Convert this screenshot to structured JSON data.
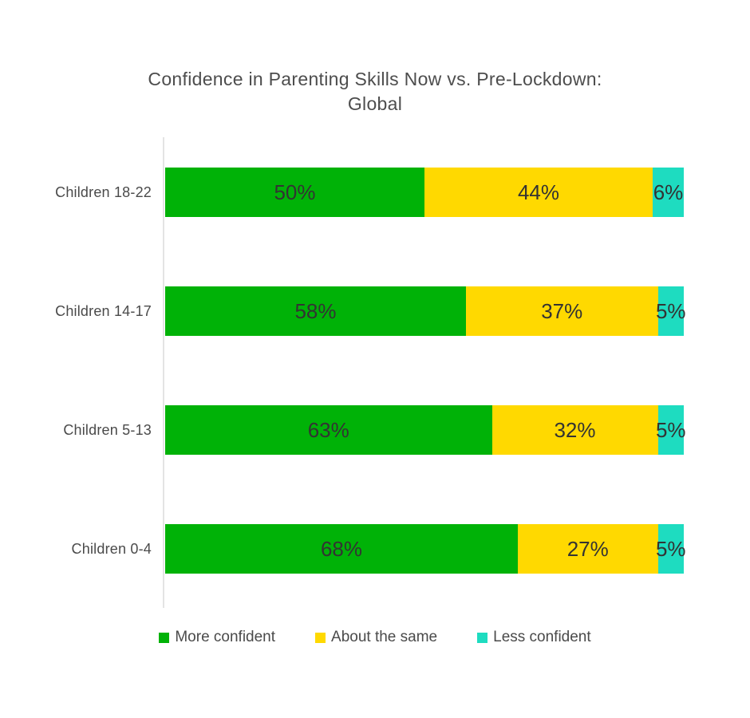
{
  "title": {
    "line1": "Confidence in Parenting Skills Now vs. Pre-Lockdown:",
    "line2": "Global"
  },
  "chart_data": {
    "type": "bar",
    "orientation": "horizontal",
    "stacked": true,
    "title": "Confidence in Parenting Skills Now vs. Pre-Lockdown: Global",
    "categories": [
      "Children 18-22",
      "Children 14-17",
      "Children 5-13",
      "Children 0-4"
    ],
    "series": [
      {
        "name": "More confident",
        "color": "#00B207",
        "values": [
          50,
          58,
          63,
          68
        ]
      },
      {
        "name": "About the same",
        "color": "#FFD900",
        "values": [
          44,
          37,
          32,
          27
        ]
      },
      {
        "name": "Less confident",
        "color": "#1EDCC0",
        "values": [
          6,
          5,
          5,
          5
        ]
      }
    ],
    "value_suffix": "%",
    "xlim": [
      0,
      100
    ],
    "grid": false,
    "legend_position": "bottom"
  },
  "colors": {
    "more_confident": "#00B207",
    "about_the_same": "#FFD900",
    "less_confident": "#1EDCC0",
    "axis_line": "#E4E4E4"
  }
}
